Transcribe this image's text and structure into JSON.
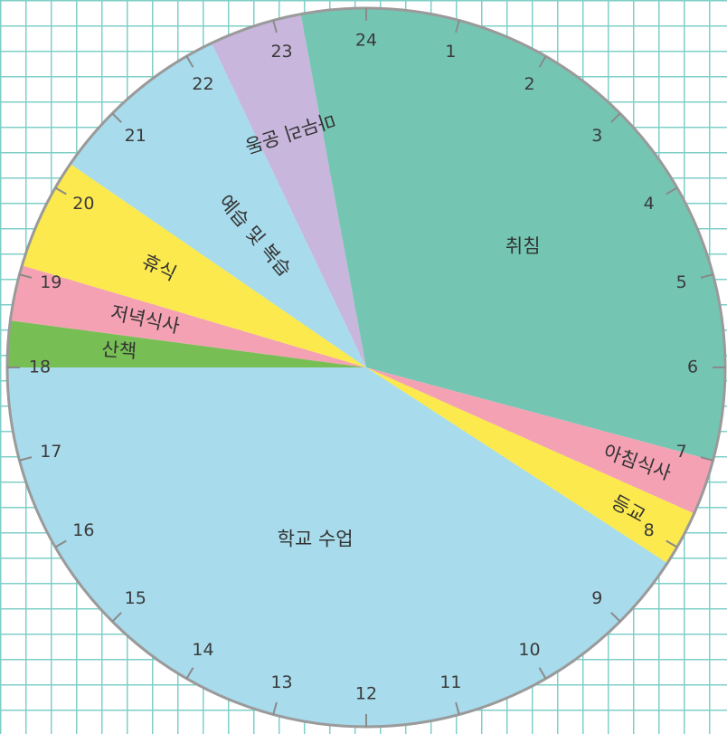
{
  "chart_data": {
    "type": "pie",
    "title": "",
    "unit": "hours",
    "total_hours": 24,
    "start_hour": 0,
    "slices": [
      {
        "label": "취침",
        "start": 0,
        "end": 7.0,
        "value": 7.0,
        "color": "#74c6b3"
      },
      {
        "label": "아침식사",
        "start": 7.0,
        "end": 7.6,
        "value": 0.6,
        "color": "#f4a2b3"
      },
      {
        "label": "등교",
        "start": 7.6,
        "end": 8.2,
        "value": 0.6,
        "color": "#fbe94d"
      },
      {
        "label": "학교 수업",
        "start": 8.2,
        "end": 18.0,
        "value": 9.8,
        "color": "#a8dbec"
      },
      {
        "label": "산책",
        "start": 18.0,
        "end": 18.5,
        "value": 0.5,
        "color": "#77bf55"
      },
      {
        "label": "저녁식사",
        "start": 18.5,
        "end": 19.1,
        "value": 0.6,
        "color": "#f4a2b3"
      },
      {
        "label": "휴식",
        "start": 19.1,
        "end": 20.3,
        "value": 1.2,
        "color": "#fbe94d"
      },
      {
        "label": "예습 및 복습",
        "start": 20.3,
        "end": 22.3,
        "value": 2.0,
        "color": "#a8dbec"
      },
      {
        "label": "마무리 운동",
        "start": 22.3,
        "end": 23.3,
        "value": 1.0,
        "color": "#c8b6dc"
      },
      {
        "label": "취침",
        "start": 23.3,
        "end": 24.0,
        "value": 0.7,
        "color": "#74c6b3"
      }
    ],
    "hour_labels": [
      "24",
      "1",
      "2",
      "3",
      "4",
      "5",
      "6",
      "7",
      "8",
      "9",
      "10",
      "11",
      "12",
      "13",
      "14",
      "15",
      "16",
      "17",
      "18",
      "19",
      "20",
      "21",
      "22",
      "23"
    ]
  }
}
